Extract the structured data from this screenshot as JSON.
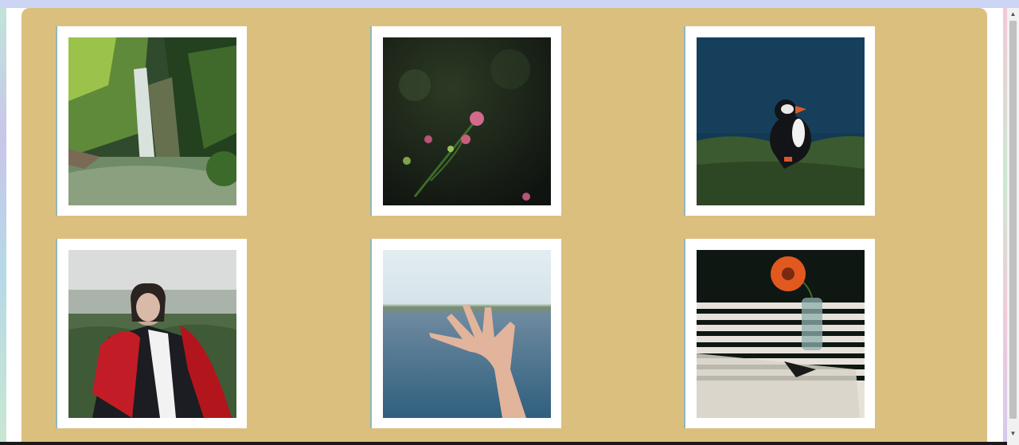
{
  "gallery": {
    "photos": [
      {
        "subject": "waterfall"
      },
      {
        "subject": "pink-flowers"
      },
      {
        "subject": "puffin"
      },
      {
        "subject": "woman-red-scarf"
      },
      {
        "subject": "hand-over-lake"
      },
      {
        "subject": "orange-flower-vase"
      }
    ]
  },
  "colors": {
    "panel": "#dbbf7f",
    "frame": "#ffffff",
    "topbar": "#cdd5f4"
  }
}
